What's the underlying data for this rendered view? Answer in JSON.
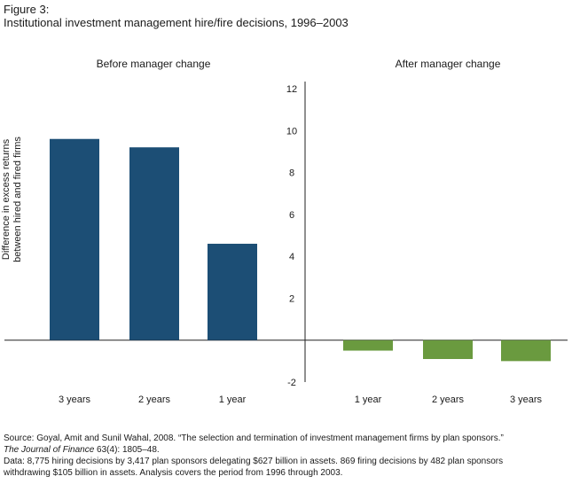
{
  "figure_label": "Figure 3:",
  "figure_title": "Institutional investment management hire/fire decisions, 1996–2003",
  "chart_data": {
    "type": "bar",
    "title": "Institutional investment management hire/fire decisions, 1996–2003",
    "ylabel": "Difference in excess returns between hired and fired firms",
    "ylabel_lines": [
      "Difference in excess returns",
      "between hired and fired firms"
    ],
    "ylim": [
      -2,
      12
    ],
    "yticks": [
      -2,
      2,
      4,
      6,
      8,
      10,
      12
    ],
    "grid": false,
    "panels": [
      {
        "label": "Before manager change",
        "categories": [
          "3 years",
          "2 years",
          "1 year"
        ],
        "values": [
          9.6,
          9.2,
          4.6
        ],
        "color": "#1c4e75"
      },
      {
        "label": "After manager change",
        "categories": [
          "1 year",
          "2 years",
          "3 years"
        ],
        "values": [
          -0.5,
          -0.9,
          -1.0
        ],
        "color": "#6a9a3f"
      }
    ]
  },
  "source": {
    "line1_pre": "Source: Goyal, Amit and Sunil Wahal, 2008. “The selection and termination of investment management firms by plan sponsors.” ",
    "journal": "The Journal of Finance",
    "line1_post": " 63(4): 1805–48.",
    "data_note": "Data: 8,775 hiring decisions by 3,417 plan sponsors delegating $627 billion in assets. 869 firing decisions by 482 plan sponsors withdrawing $105 billion in assets. Analysis covers the period from 1996 through 2003."
  }
}
